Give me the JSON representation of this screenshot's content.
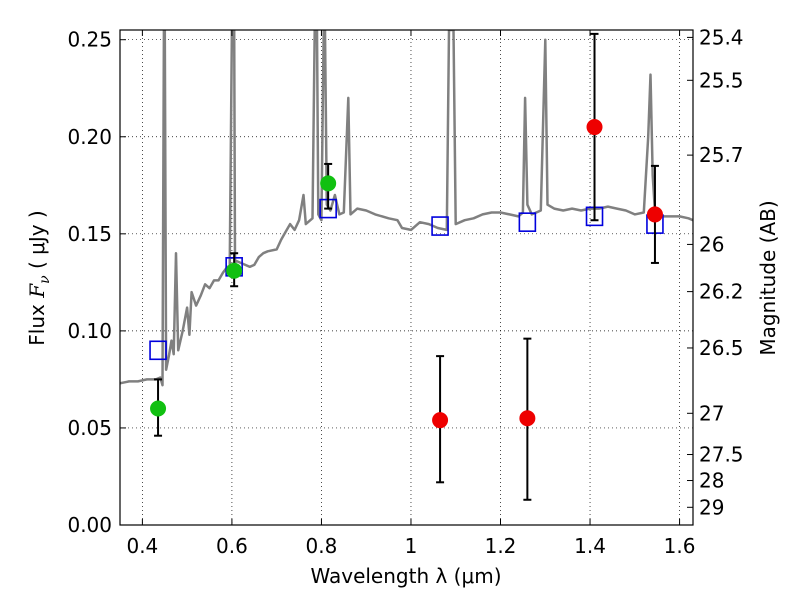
{
  "chart_data": {
    "type": "scatter",
    "xlabel": "Wavelength  λ (μm)",
    "ylabel": {
      "prefix": "Flux  ",
      "symbol": "F",
      "subscript": "ν",
      "suffix": "  ( μJy )"
    },
    "ylabel_right": "Magnitude (AB)",
    "xlim": [
      0.35,
      1.63
    ],
    "ylim": [
      0.0,
      0.255
    ],
    "grid": "dotted",
    "xticks": [
      {
        "value": 0.4,
        "label": "0.4"
      },
      {
        "value": 0.6,
        "label": "0.6"
      },
      {
        "value": 0.8,
        "label": "0.8"
      },
      {
        "value": 1.0,
        "label": "1"
      },
      {
        "value": 1.2,
        "label": "1.2"
      },
      {
        "value": 1.4,
        "label": "1.4"
      },
      {
        "value": 1.6,
        "label": "1.6"
      }
    ],
    "yticks": [
      {
        "value": 0.0,
        "label": "0.00"
      },
      {
        "value": 0.05,
        "label": "0.05"
      },
      {
        "value": 0.1,
        "label": "0.10"
      },
      {
        "value": 0.15,
        "label": "0.15"
      },
      {
        "value": 0.2,
        "label": "0.20"
      },
      {
        "value": 0.25,
        "label": "0.25"
      }
    ],
    "yticks_right": [
      {
        "mag": 25.4,
        "label": "25.4"
      },
      {
        "mag": 25.5,
        "label": "25.5"
      },
      {
        "mag": 25.7,
        "label": "25.7"
      },
      {
        "mag": 26.0,
        "label": "26"
      },
      {
        "mag": 26.2,
        "label": "26.2"
      },
      {
        "mag": 26.5,
        "label": "26.5"
      },
      {
        "mag": 27.0,
        "label": "27"
      },
      {
        "mag": 27.5,
        "label": "27.5"
      },
      {
        "mag": 28.0,
        "label": "28"
      },
      {
        "mag": 29.0,
        "label": "29"
      }
    ],
    "series": [
      {
        "name": "model_spectrum",
        "kind": "line",
        "color": "#808080",
        "points": [
          [
            0.35,
            0.073
          ],
          [
            0.37,
            0.074
          ],
          [
            0.39,
            0.074
          ],
          [
            0.41,
            0.075
          ],
          [
            0.43,
            0.075
          ],
          [
            0.44,
            0.076
          ],
          [
            0.445,
            0.072
          ],
          [
            0.448,
            0.255
          ],
          [
            0.45,
            0.255
          ],
          [
            0.453,
            0.08
          ],
          [
            0.46,
            0.088
          ],
          [
            0.465,
            0.095
          ],
          [
            0.47,
            0.088
          ],
          [
            0.475,
            0.14
          ],
          [
            0.48,
            0.09
          ],
          [
            0.49,
            0.1
          ],
          [
            0.5,
            0.112
          ],
          [
            0.505,
            0.098
          ],
          [
            0.51,
            0.12
          ],
          [
            0.52,
            0.113
          ],
          [
            0.53,
            0.118
          ],
          [
            0.54,
            0.124
          ],
          [
            0.55,
            0.122
          ],
          [
            0.56,
            0.126
          ],
          [
            0.57,
            0.126
          ],
          [
            0.58,
            0.13
          ],
          [
            0.59,
            0.133
          ],
          [
            0.595,
            0.132
          ],
          [
            0.6,
            0.255
          ],
          [
            0.605,
            0.255
          ],
          [
            0.607,
            0.135
          ],
          [
            0.61,
            0.136
          ],
          [
            0.63,
            0.134
          ],
          [
            0.64,
            0.133
          ],
          [
            0.65,
            0.134
          ],
          [
            0.66,
            0.138
          ],
          [
            0.67,
            0.14
          ],
          [
            0.68,
            0.141
          ],
          [
            0.7,
            0.142
          ],
          [
            0.71,
            0.147
          ],
          [
            0.72,
            0.151
          ],
          [
            0.73,
            0.155
          ],
          [
            0.74,
            0.152
          ],
          [
            0.75,
            0.157
          ],
          [
            0.76,
            0.17
          ],
          [
            0.765,
            0.155
          ],
          [
            0.77,
            0.156
          ],
          [
            0.78,
            0.158
          ],
          [
            0.785,
            0.255
          ],
          [
            0.79,
            0.255
          ],
          [
            0.793,
            0.16
          ],
          [
            0.8,
            0.157
          ],
          [
            0.805,
            0.255
          ],
          [
            0.808,
            0.255
          ],
          [
            0.812,
            0.165
          ],
          [
            0.82,
            0.162
          ],
          [
            0.83,
            0.17
          ],
          [
            0.835,
            0.165
          ],
          [
            0.84,
            0.16
          ],
          [
            0.85,
            0.161
          ],
          [
            0.86,
            0.22
          ],
          [
            0.865,
            0.16
          ],
          [
            0.88,
            0.163
          ],
          [
            0.9,
            0.162
          ],
          [
            0.92,
            0.16
          ],
          [
            0.95,
            0.158
          ],
          [
            0.97,
            0.157
          ],
          [
            0.98,
            0.153
          ],
          [
            1.0,
            0.152
          ],
          [
            1.02,
            0.156
          ],
          [
            1.04,
            0.155
          ],
          [
            1.06,
            0.153
          ],
          [
            1.08,
            0.152
          ],
          [
            1.085,
            0.255
          ],
          [
            1.095,
            0.255
          ],
          [
            1.1,
            0.155
          ],
          [
            1.12,
            0.157
          ],
          [
            1.14,
            0.158
          ],
          [
            1.16,
            0.16
          ],
          [
            1.18,
            0.161
          ],
          [
            1.2,
            0.161
          ],
          [
            1.22,
            0.16
          ],
          [
            1.24,
            0.159
          ],
          [
            1.25,
            0.161
          ],
          [
            1.255,
            0.22
          ],
          [
            1.26,
            0.165
          ],
          [
            1.27,
            0.16
          ],
          [
            1.28,
            0.161
          ],
          [
            1.29,
            0.162
          ],
          [
            1.3,
            0.25
          ],
          [
            1.305,
            0.165
          ],
          [
            1.32,
            0.163
          ],
          [
            1.34,
            0.162
          ],
          [
            1.36,
            0.163
          ],
          [
            1.38,
            0.162
          ],
          [
            1.4,
            0.163
          ],
          [
            1.42,
            0.163
          ],
          [
            1.44,
            0.164
          ],
          [
            1.46,
            0.163
          ],
          [
            1.48,
            0.162
          ],
          [
            1.5,
            0.16
          ],
          [
            1.52,
            0.161
          ],
          [
            1.53,
            0.2
          ],
          [
            1.535,
            0.232
          ],
          [
            1.54,
            0.18
          ],
          [
            1.545,
            0.162
          ],
          [
            1.56,
            0.159
          ],
          [
            1.58,
            0.159
          ],
          [
            1.6,
            0.159
          ],
          [
            1.62,
            0.158
          ],
          [
            1.63,
            0.157
          ]
        ]
      },
      {
        "name": "model_photometry",
        "kind": "open-square",
        "color": "#0000dd",
        "points": [
          [
            0.435,
            0.09
          ],
          [
            0.605,
            0.133
          ],
          [
            0.815,
            0.163
          ],
          [
            1.065,
            0.154
          ],
          [
            1.26,
            0.156
          ],
          [
            1.41,
            0.159
          ],
          [
            1.545,
            0.155
          ]
        ]
      },
      {
        "name": "detections",
        "kind": "filled-circle",
        "color": "#11c011",
        "points": [
          {
            "x": 0.435,
            "y": 0.06,
            "lo": 0.046,
            "hi": 0.075
          },
          {
            "x": 0.605,
            "y": 0.131,
            "lo": 0.123,
            "hi": 0.14
          },
          {
            "x": 0.815,
            "y": 0.176,
            "lo": 0.163,
            "hi": 0.186
          }
        ]
      },
      {
        "name": "upper_limits",
        "kind": "filled-circle",
        "color": "#ee0000",
        "points": [
          {
            "x": 1.065,
            "y": 0.054,
            "lo": 0.022,
            "hi": 0.087
          },
          {
            "x": 1.26,
            "y": 0.055,
            "lo": 0.013,
            "hi": 0.096
          },
          {
            "x": 1.41,
            "y": 0.205,
            "lo": 0.157,
            "hi": 0.253
          },
          {
            "x": 1.545,
            "y": 0.16,
            "lo": 0.135,
            "hi": 0.185
          }
        ]
      }
    ]
  }
}
